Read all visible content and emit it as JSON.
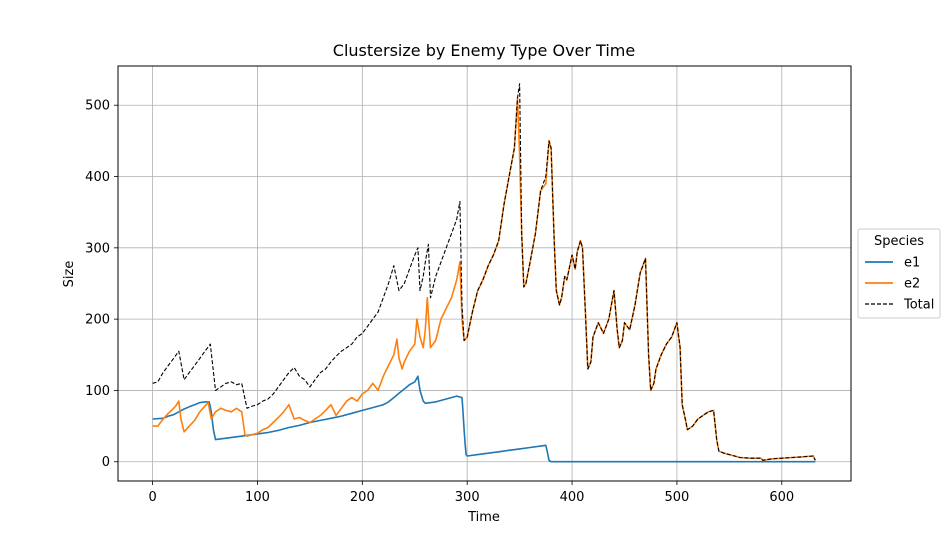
{
  "chart_data": {
    "type": "line",
    "title": "Clustersize by Enemy Type Over Time",
    "xlabel": "Time",
    "ylabel": "Size",
    "xlim": [
      -33,
      666
    ],
    "ylim": [
      -27,
      555
    ],
    "xticks": [
      0,
      100,
      200,
      300,
      400,
      500,
      600
    ],
    "yticks": [
      0,
      100,
      200,
      300,
      400,
      500
    ],
    "grid": true,
    "legend": {
      "title": "Species",
      "position": "outside-right"
    },
    "series": [
      {
        "name": "e1",
        "color": "#1f77b4",
        "style": "solid",
        "x": [
          0,
          10,
          15,
          20,
          25,
          30,
          35,
          40,
          45,
          50,
          54,
          56,
          58,
          60,
          70,
          80,
          90,
          100,
          110,
          120,
          130,
          140,
          150,
          160,
          170,
          180,
          190,
          200,
          210,
          220,
          225,
          230,
          235,
          240,
          245,
          250,
          253,
          255,
          258,
          260,
          270,
          280,
          290,
          295,
          296,
          297,
          298,
          299,
          300,
          310,
          320,
          330,
          340,
          350,
          360,
          370,
          375,
          377,
          378,
          380,
          400,
          450,
          500,
          550,
          600,
          632
        ],
        "y": [
          60,
          61,
          64,
          66,
          70,
          74,
          77,
          80,
          83,
          84,
          84,
          70,
          45,
          31,
          33,
          35,
          37,
          39,
          41,
          44,
          48,
          51,
          55,
          58,
          61,
          64,
          68,
          72,
          76,
          80,
          84,
          90,
          96,
          102,
          108,
          112,
          120,
          100,
          85,
          82,
          84,
          88,
          92,
          90,
          70,
          45,
          25,
          10,
          8,
          10,
          12,
          14,
          16,
          18,
          20,
          22,
          23,
          10,
          2,
          0,
          0,
          0,
          0,
          0,
          0,
          0
        ]
      },
      {
        "name": "e2",
        "color": "#ff7f0e",
        "style": "solid",
        "x": [
          0,
          5,
          10,
          15,
          18,
          22,
          25,
          27,
          30,
          35,
          40,
          45,
          50,
          53,
          56,
          58,
          60,
          65,
          70,
          75,
          80,
          85,
          88,
          90,
          95,
          100,
          105,
          110,
          115,
          120,
          125,
          130,
          135,
          140,
          145,
          150,
          155,
          160,
          165,
          170,
          175,
          180,
          185,
          190,
          195,
          200,
          205,
          210,
          215,
          220,
          225,
          230,
          233,
          235,
          238,
          240,
          245,
          250,
          252,
          255,
          258,
          260,
          262,
          265,
          270,
          275,
          280,
          285,
          290,
          293,
          295,
          297,
          300,
          305,
          310,
          315,
          320,
          325,
          330,
          335,
          340,
          345,
          348,
          350,
          352,
          354,
          356,
          360,
          365,
          370,
          375,
          378,
          380,
          383,
          385,
          388,
          390,
          393,
          395,
          400,
          403,
          405,
          408,
          410,
          413,
          415,
          418,
          420,
          425,
          430,
          435,
          440,
          443,
          445,
          448,
          450,
          455,
          460,
          465,
          470,
          473,
          475,
          478,
          480,
          485,
          490,
          495,
          500,
          503,
          505,
          508,
          510,
          515,
          520,
          525,
          530,
          535,
          538,
          540,
          545,
          550,
          555,
          560,
          570,
          580,
          582,
          590,
          600,
          610,
          620,
          630,
          632
        ],
        "y": [
          50,
          50,
          60,
          68,
          72,
          78,
          85,
          60,
          42,
          50,
          58,
          70,
          78,
          83,
          60,
          65,
          70,
          75,
          72,
          70,
          75,
          70,
          38,
          36,
          38,
          40,
          45,
          48,
          55,
          62,
          70,
          80,
          60,
          62,
          58,
          55,
          60,
          65,
          72,
          80,
          65,
          75,
          85,
          90,
          85,
          95,
          100,
          110,
          100,
          120,
          135,
          150,
          172,
          145,
          130,
          140,
          155,
          165,
          200,
          175,
          160,
          185,
          230,
          160,
          170,
          200,
          215,
          230,
          255,
          280,
          200,
          170,
          175,
          210,
          240,
          255,
          275,
          290,
          310,
          360,
          400,
          440,
          510,
          430,
          320,
          245,
          250,
          280,
          320,
          380,
          390,
          450,
          440,
          310,
          240,
          220,
          230,
          260,
          255,
          290,
          270,
          295,
          310,
          300,
          200,
          130,
          140,
          175,
          195,
          180,
          200,
          240,
          185,
          160,
          170,
          195,
          185,
          220,
          265,
          285,
          150,
          100,
          110,
          130,
          150,
          165,
          175,
          195,
          160,
          80,
          60,
          45,
          50,
          60,
          65,
          70,
          72,
          30,
          15,
          12,
          10,
          8,
          6,
          5,
          5,
          2,
          4,
          5,
          6,
          7,
          8,
          2
        ]
      },
      {
        "name": "Total",
        "color": "#000000",
        "style": "dashed",
        "x": [
          0,
          5,
          10,
          15,
          20,
          25,
          30,
          35,
          40,
          45,
          50,
          55,
          60,
          65,
          70,
          75,
          80,
          85,
          90,
          95,
          100,
          105,
          110,
          115,
          120,
          125,
          130,
          135,
          140,
          145,
          150,
          155,
          160,
          165,
          170,
          175,
          180,
          185,
          190,
          195,
          200,
          205,
          210,
          215,
          220,
          225,
          230,
          235,
          240,
          245,
          250,
          253,
          255,
          258,
          260,
          263,
          265,
          270,
          275,
          280,
          285,
          290,
          293,
          295,
          297,
          300,
          305,
          310,
          315,
          320,
          325,
          330,
          335,
          340,
          345,
          348,
          350,
          352,
          354,
          356,
          360,
          365,
          370,
          375,
          378,
          380,
          383,
          385,
          388,
          390,
          393,
          395,
          400,
          403,
          405,
          408,
          410,
          413,
          415,
          418,
          420,
          425,
          430,
          435,
          440,
          443,
          445,
          448,
          450,
          455,
          460,
          465,
          470,
          473,
          475,
          478,
          480,
          485,
          490,
          495,
          500,
          503,
          505,
          508,
          510,
          515,
          520,
          525,
          530,
          535,
          538,
          540,
          545,
          550,
          555,
          560,
          570,
          580,
          582,
          590,
          600,
          610,
          620,
          630,
          632
        ],
        "y": [
          110,
          112,
          125,
          135,
          145,
          155,
          115,
          125,
          135,
          145,
          155,
          165,
          100,
          105,
          110,
          112,
          108,
          110,
          75,
          78,
          80,
          85,
          88,
          95,
          105,
          115,
          125,
          132,
          120,
          115,
          105,
          115,
          125,
          130,
          140,
          148,
          155,
          160,
          165,
          175,
          180,
          190,
          200,
          210,
          230,
          250,
          275,
          240,
          250,
          270,
          290,
          300,
          240,
          260,
          280,
          305,
          230,
          260,
          280,
          300,
          320,
          340,
          365,
          220,
          170,
          175,
          210,
          240,
          255,
          275,
          290,
          310,
          360,
          400,
          440,
          510,
          530,
          320,
          245,
          250,
          280,
          320,
          380,
          400,
          450,
          440,
          310,
          240,
          220,
          230,
          260,
          255,
          290,
          270,
          295,
          310,
          300,
          200,
          130,
          140,
          175,
          195,
          180,
          200,
          240,
          185,
          160,
          170,
          195,
          185,
          220,
          265,
          285,
          150,
          100,
          110,
          130,
          150,
          165,
          175,
          195,
          160,
          80,
          60,
          45,
          50,
          60,
          65,
          70,
          72,
          30,
          15,
          12,
          10,
          8,
          6,
          5,
          5,
          2,
          4,
          5,
          6,
          7,
          8,
          2
        ]
      }
    ]
  }
}
